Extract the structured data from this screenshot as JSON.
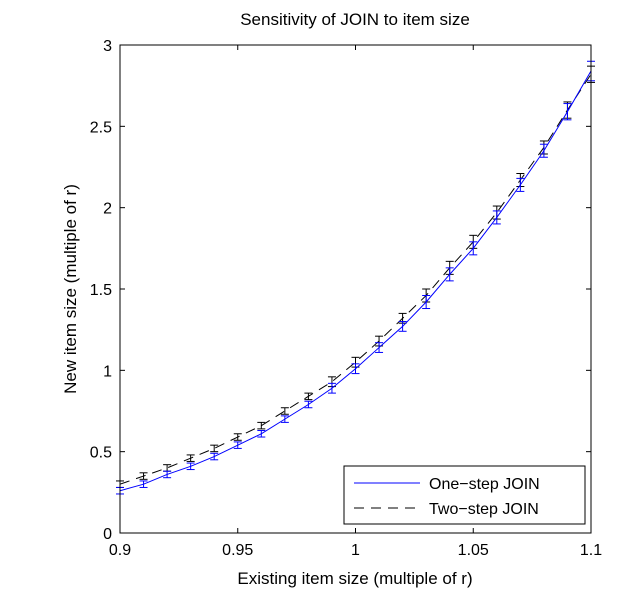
{
  "chart_data": {
    "type": "line",
    "title": "Sensitivity of JOIN to item size",
    "xlabel": "Existing item size (multiple of r)",
    "ylabel": "New item size (multiple of r)",
    "xlim": [
      0.9,
      1.1
    ],
    "ylim": [
      0,
      3
    ],
    "xticks": [
      0.9,
      0.95,
      1,
      1.05,
      1.1
    ],
    "xtick_labels": [
      "0.9",
      "0.95",
      "1",
      "1.05",
      "1.1"
    ],
    "yticks": [
      0,
      0.5,
      1,
      1.5,
      2,
      2.5,
      3
    ],
    "ytick_labels": [
      "0",
      "0.5",
      "1",
      "1.5",
      "2",
      "2.5",
      "3"
    ],
    "grid": false,
    "legend_position": "bottom-right",
    "x": [
      0.9,
      0.91,
      0.92,
      0.93,
      0.94,
      0.95,
      0.96,
      0.97,
      0.98,
      0.99,
      1.0,
      1.01,
      1.02,
      1.03,
      1.04,
      1.05,
      1.06,
      1.07,
      1.08,
      1.09,
      1.1
    ],
    "series": [
      {
        "name": "One−step JOIN",
        "color": "#0000ff",
        "dash": "solid",
        "values": [
          0.26,
          0.3,
          0.36,
          0.41,
          0.47,
          0.54,
          0.61,
          0.7,
          0.79,
          0.89,
          1.01,
          1.14,
          1.27,
          1.42,
          1.59,
          1.75,
          1.94,
          2.14,
          2.35,
          2.59,
          2.84
        ],
        "error": [
          0.02,
          0.02,
          0.02,
          0.02,
          0.02,
          0.02,
          0.02,
          0.02,
          0.02,
          0.03,
          0.03,
          0.03,
          0.03,
          0.04,
          0.04,
          0.04,
          0.04,
          0.04,
          0.04,
          0.05,
          0.06
        ]
      },
      {
        "name": "Two−step JOIN",
        "color": "#000000",
        "dash": "dashed",
        "values": [
          0.3,
          0.35,
          0.4,
          0.46,
          0.52,
          0.59,
          0.66,
          0.75,
          0.84,
          0.93,
          1.05,
          1.18,
          1.32,
          1.46,
          1.63,
          1.79,
          1.97,
          2.17,
          2.37,
          2.6,
          2.82
        ],
        "error": [
          0.02,
          0.02,
          0.02,
          0.02,
          0.02,
          0.02,
          0.02,
          0.02,
          0.02,
          0.03,
          0.03,
          0.03,
          0.03,
          0.04,
          0.04,
          0.04,
          0.04,
          0.04,
          0.04,
          0.05,
          0.05
        ]
      }
    ]
  }
}
